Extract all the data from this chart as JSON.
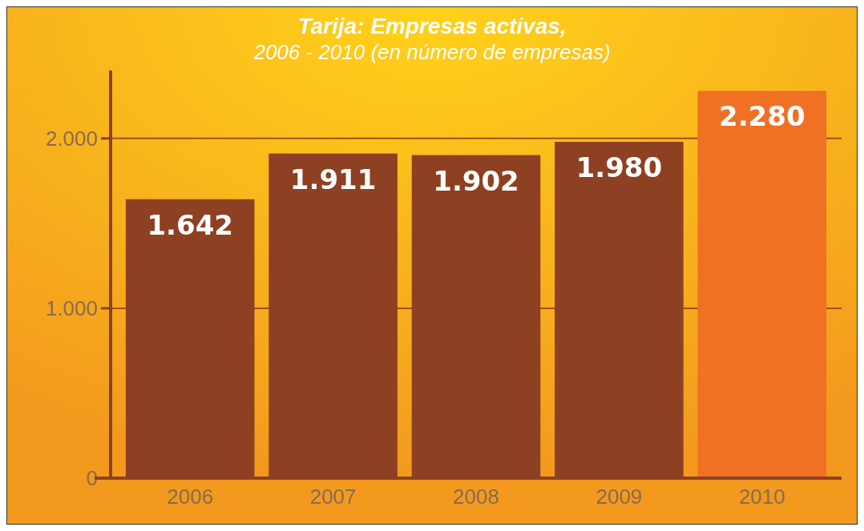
{
  "chart_data": {
    "type": "bar",
    "title": "Tarija: Empresas activas,",
    "subtitle": "2006 - 2010 (en número de empresas)",
    "categories": [
      "2006",
      "2007",
      "2008",
      "2009",
      "2010"
    ],
    "values": [
      1642,
      1911,
      1902,
      1980,
      2280
    ],
    "colors": [
      "#8e4022",
      "#8e4022",
      "#8e4022",
      "#8e4022",
      "#f07024"
    ],
    "ylim": [
      0,
      2400
    ],
    "yticks": [
      0,
      {
        "value": 1000,
        "label": "1.000"
      },
      {
        "value": 2000,
        "label": "2.000"
      }
    ],
    "value_labels": [
      "1.642",
      "1.911",
      "1.902",
      "1.980",
      "2.280"
    ],
    "grid": "y"
  }
}
